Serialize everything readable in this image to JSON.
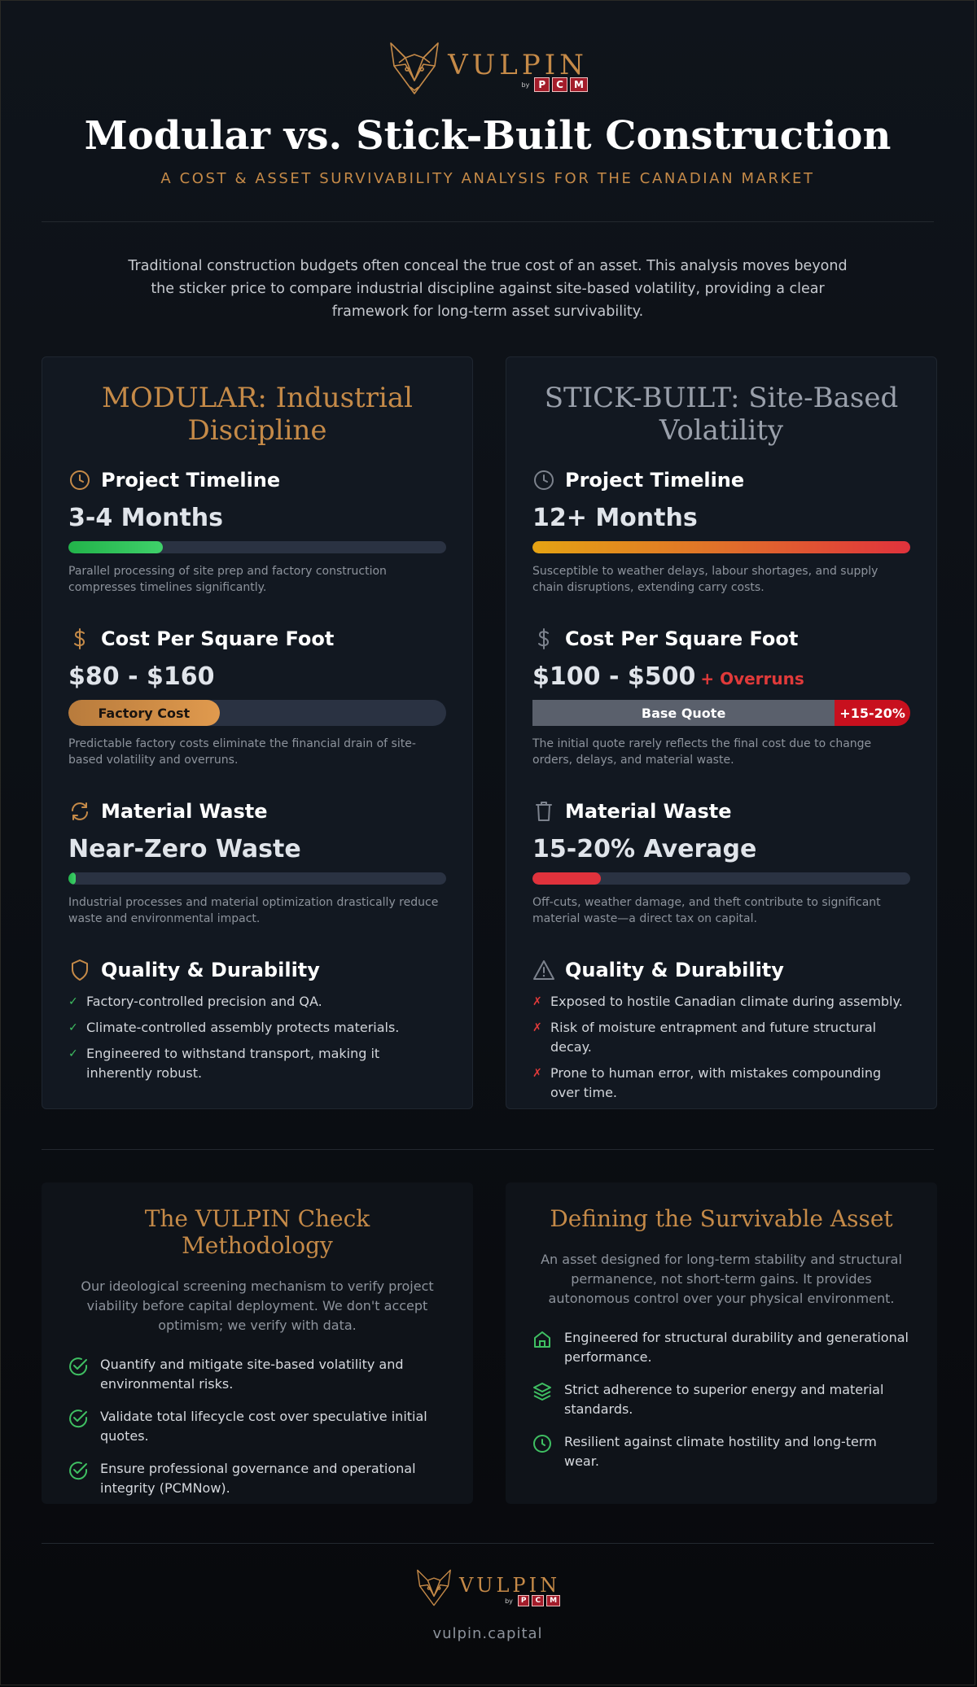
{
  "brand": {
    "name": "VULPIN",
    "byline": "by",
    "sub_letters": [
      "P",
      "C",
      "M"
    ],
    "accent": "#c58a48",
    "logo_icon": "fox-head-icon"
  },
  "header": {
    "title": "Modular vs. Stick-Built Construction",
    "subtitle": "A COST & ASSET SURVIVABILITY ANALYSIS FOR THE CANADIAN MARKET"
  },
  "intro": "Traditional construction budgets often conceal the true cost of an asset. This analysis moves beyond the sticker price to compare industrial discipline against site-based volatility, providing a clear framework for long-term asset survivability.",
  "modular": {
    "title": "MODULAR: Industrial Discipline",
    "timeline": {
      "label": "Project Timeline",
      "value": "3-4 Months",
      "fill": 0.25,
      "desc": "Parallel processing of site prep and factory construction compresses timelines significantly."
    },
    "cost": {
      "label": "Cost Per Square Foot",
      "value": "$80 - $160",
      "bar_label": "Factory Cost",
      "fill": 0.4,
      "desc": "Predictable factory costs eliminate the financial drain of site-based volatility and overruns."
    },
    "waste": {
      "label": "Material Waste",
      "value": "Near-Zero Waste",
      "fill": 0.02,
      "desc": "Industrial processes and material optimization drastically reduce waste and environmental impact."
    },
    "quality": {
      "label": "Quality & Durability",
      "items": [
        "Factory-controlled precision and QA.",
        "Climate-controlled assembly protects materials.",
        "Engineered to withstand transport, making it inherently robust."
      ]
    }
  },
  "stick": {
    "title": "STICK-BUILT: Site-Based Volatility",
    "timeline": {
      "label": "Project Timeline",
      "value": "12+ Months",
      "fill": 1.0,
      "desc": "Susceptible to weather delays, labour shortages, and supply chain disruptions, extending carry costs."
    },
    "cost": {
      "label": "Cost Per Square Foot",
      "value": "$100 - $500",
      "extra": "+ Overruns",
      "base_label": "Base Quote",
      "over_label": "+15-20%",
      "base_fill": 0.8,
      "desc": "The initial quote rarely reflects the final cost due to change orders, delays, and material waste."
    },
    "waste": {
      "label": "Material Waste",
      "value": "15-20% Average",
      "fill": 0.18,
      "desc": "Off-cuts, weather damage, and theft contribute to significant material waste—a direct tax on capital."
    },
    "quality": {
      "label": "Quality & Durability",
      "items": [
        "Exposed to hostile Canadian climate during assembly.",
        "Risk of moisture entrapment and future structural decay.",
        "Prone to human error, with mistakes compounding over time."
      ]
    }
  },
  "marks": {
    "check": "✓",
    "cross": "✗"
  },
  "methodology": {
    "title": "The VULPIN Check Methodology",
    "lead": "Our ideological screening mechanism to verify project viability before capital deployment. We don't accept optimism; we verify with data.",
    "items": [
      {
        "icon": "check-circle-icon",
        "text": "Quantify and mitigate site-based volatility and environmental risks."
      },
      {
        "icon": "check-circle-icon",
        "text": "Validate total lifecycle cost over speculative initial quotes."
      },
      {
        "icon": "check-circle-icon",
        "text": "Ensure professional governance and operational integrity (PCMNow)."
      }
    ]
  },
  "survivable": {
    "title": "Defining the Survivable Asset",
    "lead": "An asset designed for long-term stability and structural permanence, not short-term gains. It provides autonomous control over your physical environment.",
    "items": [
      {
        "icon": "house-icon",
        "text": "Engineered for structural durability and generational performance."
      },
      {
        "icon": "layers-icon",
        "text": "Strict adherence to superior energy and material standards."
      },
      {
        "icon": "clock-icon",
        "text": "Resilient against climate hostility and long-term wear."
      }
    ]
  },
  "footer": {
    "url": "vulpin.capital"
  },
  "colors": {
    "green": "#3fbf62",
    "red": "#e0323c",
    "muted": "#8d939c"
  }
}
